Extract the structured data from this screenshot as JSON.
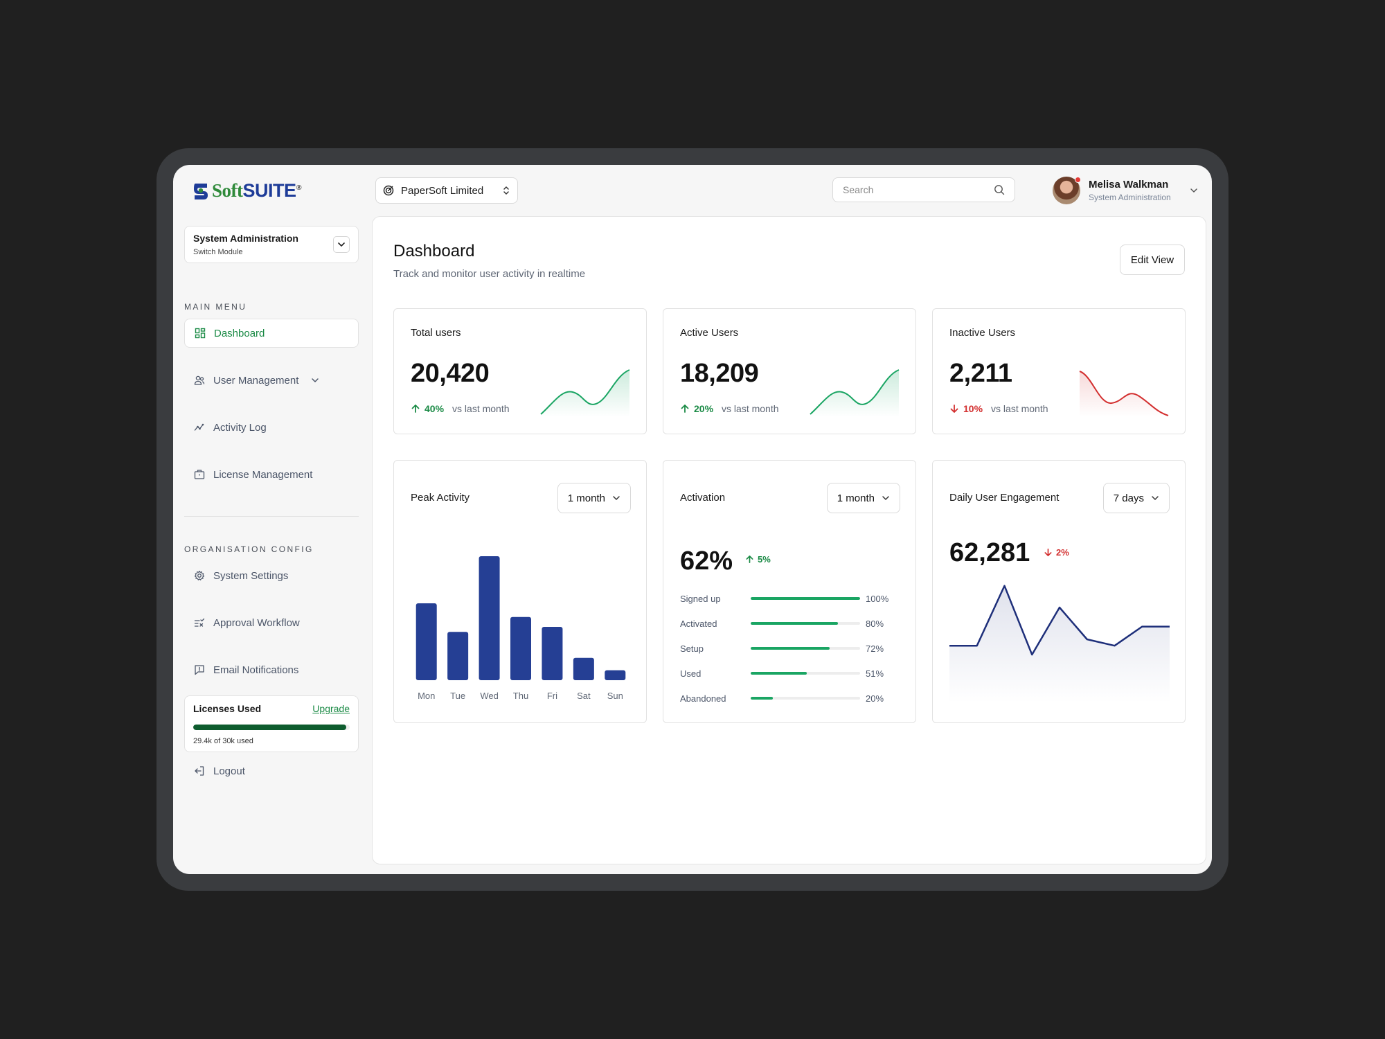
{
  "brand": {
    "soft": "Soft",
    "suite": "SUITE",
    "reg": "®"
  },
  "org": {
    "name": "PaperSoft Limited"
  },
  "search": {
    "placeholder": "Search"
  },
  "user": {
    "name": "Melisa Walkman",
    "role": "System Administration"
  },
  "module": {
    "title": "System Administration",
    "sub": "Switch Module"
  },
  "sidebar": {
    "main_label": "MAIN MENU",
    "main_items": [
      {
        "label": "Dashboard",
        "icon": "grid-icon",
        "active": true
      },
      {
        "label": "User Management",
        "icon": "users-icon"
      },
      {
        "label": "Activity Log",
        "icon": "activity-icon"
      },
      {
        "label": "License Management",
        "icon": "briefcase-icon"
      }
    ],
    "org_label": "ORGANISATION CONFIG",
    "org_items": [
      {
        "label": "System Settings",
        "icon": "gear-icon"
      },
      {
        "label": "Approval Workflow",
        "icon": "list-check-icon"
      },
      {
        "label": "Email Notifications",
        "icon": "message-alert-icon"
      }
    ],
    "logout": "Logout"
  },
  "licenses": {
    "title": "Licenses Used",
    "upgrade": "Upgrade",
    "used_fraction": 0.98,
    "note": "29.4k of 30k used"
  },
  "header": {
    "title": "Dashboard",
    "subtitle": "Track and monitor user activity in realtime",
    "edit_label": "Edit View"
  },
  "stats": [
    {
      "label": "Total users",
      "value": "20,420",
      "change": "40%",
      "direction": "up",
      "vs": "vs last month",
      "color": "#1aa563"
    },
    {
      "label": "Active Users",
      "value": "18,209",
      "change": "20%",
      "direction": "up",
      "vs": "vs last month",
      "color": "#1aa563"
    },
    {
      "label": "Inactive Users",
      "value": "2,211",
      "change": "10%",
      "direction": "down",
      "vs": "vs last month",
      "color": "#d32f2f"
    }
  ],
  "peak": {
    "title": "Peak Activity",
    "range": "1 month"
  },
  "activation": {
    "title": "Activation",
    "range": "1 month",
    "value": "62%",
    "change": "5%",
    "rows": [
      {
        "label": "Signed up",
        "pct": 100,
        "pct_label": "100%"
      },
      {
        "label": "Activated",
        "pct": 80,
        "pct_label": "80%"
      },
      {
        "label": "Setup",
        "pct": 72,
        "pct_label": "72%"
      },
      {
        "label": "Used",
        "pct": 51,
        "pct_label": "51%"
      },
      {
        "label": "Abandoned",
        "pct": 20,
        "pct_label": "20%"
      }
    ]
  },
  "engagement": {
    "title": "Daily User Engagement",
    "range": "7 days",
    "value": "62,281",
    "change": "2%"
  },
  "chart_data": [
    {
      "type": "bar",
      "categories": [
        "Mon",
        "Tue",
        "Wed",
        "Thu",
        "Fri",
        "Sat",
        "Sun"
      ],
      "values": [
        62,
        39,
        100,
        51,
        43,
        18,
        8
      ],
      "ylim": [
        0,
        100
      ],
      "color": "#253f94"
    },
    {
      "type": "area",
      "values": [
        45,
        45,
        92,
        38,
        75,
        50,
        45,
        60,
        60
      ],
      "ylim": [
        0,
        100
      ],
      "color": "#1e2f7a"
    }
  ]
}
